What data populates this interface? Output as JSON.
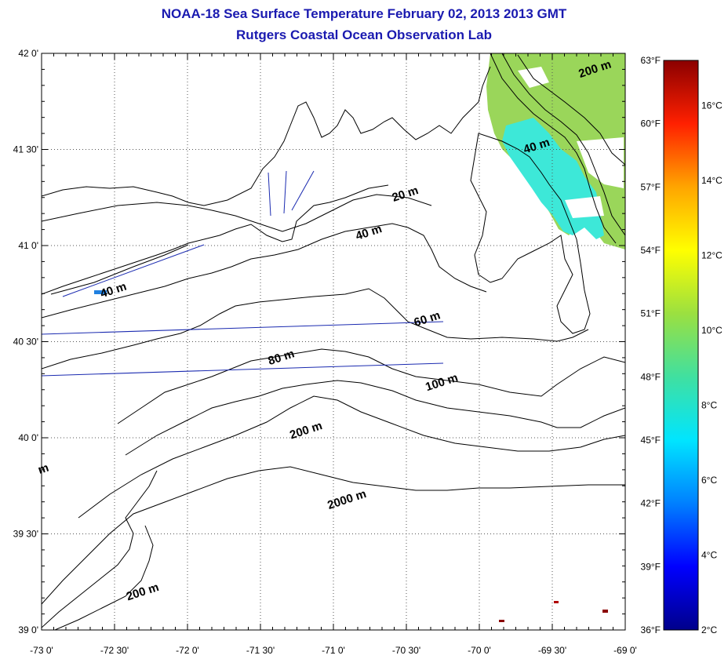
{
  "header": {
    "title": "NOAA-18 Sea Surface Temperature February 02, 2013 2013 GMT",
    "subtitle": "Rutgers Coastal Ocean Observation Lab"
  },
  "map": {
    "lat_range": [
      39.0,
      42.0
    ],
    "lon_range": [
      -73.0,
      -69.0
    ],
    "lat_labels": [
      "42 0'",
      "41 30'",
      "41 0'",
      "40 30'",
      "40 0'",
      "39 30'",
      "39 0'"
    ],
    "lon_labels": [
      "-73 0'",
      "-72 30'",
      "-72 0'",
      "-71 30'",
      "-71 0'",
      "-70 30'",
      "-70 0'",
      "-69 30'",
      "-69 0'"
    ],
    "grid": "dotted",
    "contour_labels": [
      {
        "text": "200 m",
        "lon": -69.2,
        "lat": 41.9
      },
      {
        "text": "40 m",
        "lon": -69.6,
        "lat": 41.5
      },
      {
        "text": "20 m",
        "lon": -70.5,
        "lat": 41.25
      },
      {
        "text": "40 m",
        "lon": -70.75,
        "lat": 41.05
      },
      {
        "text": "40 m",
        "lon": -72.5,
        "lat": 40.75
      },
      {
        "text": "60 m",
        "lon": -70.35,
        "lat": 40.6
      },
      {
        "text": "80 m",
        "lon": -71.35,
        "lat": 40.4
      },
      {
        "text": "100 m",
        "lon": -70.25,
        "lat": 40.27
      },
      {
        "text": "200 m",
        "lon": -71.18,
        "lat": 40.02
      },
      {
        "text": "2000 m",
        "lon": -70.9,
        "lat": 39.66
      },
      {
        "text": "200 m",
        "lon": -72.3,
        "lat": 39.18
      },
      {
        "text": "m",
        "lon": -72.98,
        "lat": 39.82
      }
    ]
  },
  "colorbar": {
    "fahrenheit_labels": [
      "63°F",
      "60°F",
      "57°F",
      "54°F",
      "51°F",
      "48°F",
      "45°F",
      "42°F",
      "39°F",
      "36°F"
    ],
    "celsius_labels": [
      "16°C",
      "14°C",
      "12°C",
      "10°C",
      "8°C",
      "6°C",
      "4°C",
      "2°C"
    ],
    "range_c": [
      2,
      17.2
    ],
    "colors": [
      "#00008b",
      "#0000ff",
      "#0080ff",
      "#00e5ff",
      "#40e0a0",
      "#9be040",
      "#ffff00",
      "#ffa500",
      "#ff2000",
      "#8b0000"
    ]
  },
  "sst_patch_colors": {
    "warm_green": "#9ad65a",
    "cyan": "#3de8d8",
    "blue": "#2080e0",
    "dark_red": "#8b0000"
  }
}
